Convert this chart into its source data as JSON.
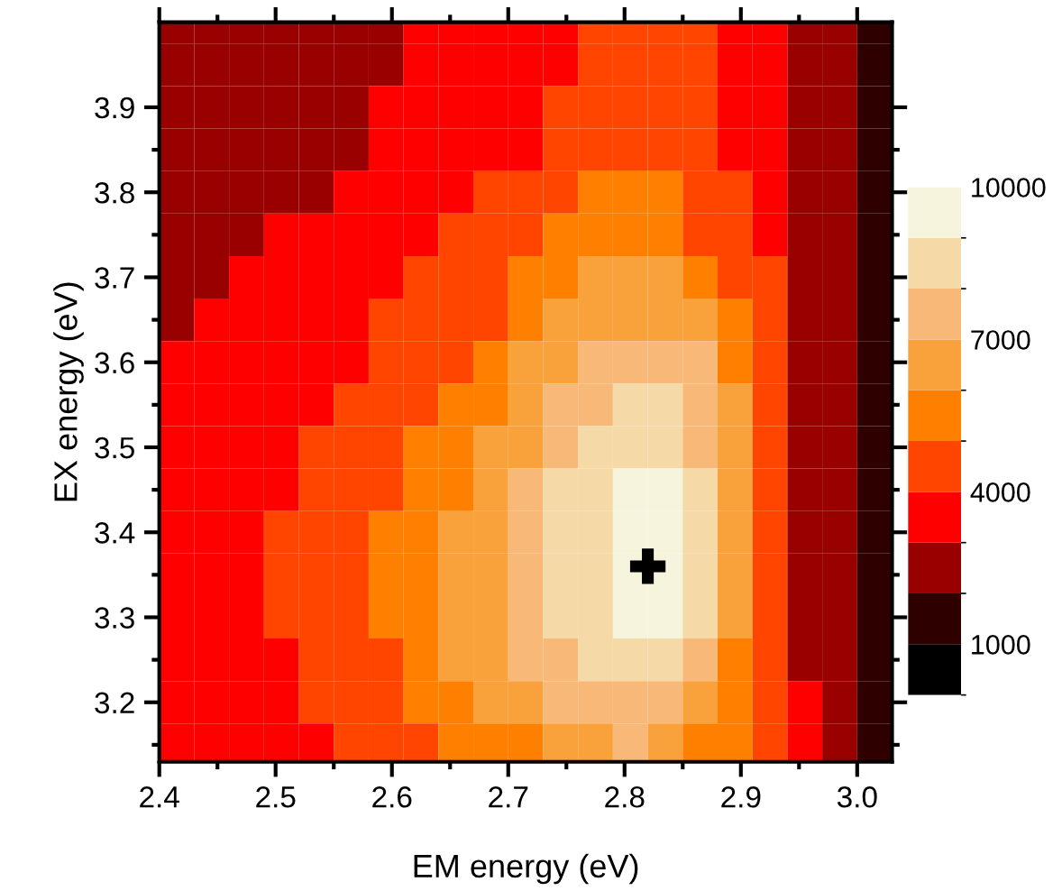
{
  "chart_data": {
    "type": "heatmap",
    "xlabel": "EM energy (eV)",
    "ylabel": "EX energy (eV)",
    "x": [
      2.415,
      2.445,
      2.475,
      2.505,
      2.535,
      2.565,
      2.595,
      2.625,
      2.655,
      2.685,
      2.715,
      2.745,
      2.775,
      2.805,
      2.835,
      2.865,
      2.895,
      2.925,
      2.955,
      2.985,
      3.015
    ],
    "y": [
      4.0,
      3.95,
      3.9,
      3.85,
      3.8,
      3.75,
      3.7,
      3.65,
      3.6,
      3.55,
      3.5,
      3.45,
      3.4,
      3.35,
      3.3,
      3.25,
      3.2,
      3.15
    ],
    "cells": [
      [
        2500,
        2500,
        2500,
        2500,
        2500,
        2500,
        2500,
        3500,
        3500,
        3500,
        3500,
        3500,
        4500,
        4500,
        4500,
        4500,
        3500,
        3500,
        2500,
        2500,
        1500
      ],
      [
        2500,
        2500,
        2500,
        2500,
        2500,
        2500,
        2500,
        3500,
        3500,
        3500,
        3500,
        3500,
        4500,
        4500,
        4500,
        4500,
        3500,
        3500,
        2500,
        2500,
        1500
      ],
      [
        2500,
        2500,
        2500,
        2500,
        2500,
        2500,
        3500,
        3500,
        3500,
        3500,
        3500,
        4500,
        4500,
        4500,
        4500,
        4500,
        3500,
        3500,
        2500,
        2500,
        1500
      ],
      [
        2500,
        2500,
        2500,
        2500,
        2500,
        2500,
        3500,
        3500,
        3500,
        3500,
        3500,
        4500,
        4500,
        4500,
        4500,
        4500,
        3500,
        3500,
        2500,
        2500,
        1500
      ],
      [
        2500,
        2500,
        2500,
        2500,
        2500,
        3500,
        3500,
        3500,
        3500,
        4500,
        4500,
        4500,
        5500,
        5500,
        5500,
        4500,
        4500,
        3500,
        2500,
        2500,
        1500
      ],
      [
        2500,
        2500,
        2500,
        3500,
        3500,
        3500,
        3500,
        3500,
        4500,
        4500,
        4500,
        5500,
        5500,
        5500,
        5500,
        4500,
        4500,
        3500,
        2500,
        2500,
        1500
      ],
      [
        2500,
        2500,
        3500,
        3500,
        3500,
        3500,
        3500,
        4500,
        4500,
        4500,
        5500,
        5500,
        6500,
        6500,
        6500,
        5500,
        4500,
        4500,
        2500,
        2500,
        1500
      ],
      [
        2500,
        3500,
        3500,
        3500,
        3500,
        3500,
        4500,
        4500,
        4500,
        4500,
        5500,
        6500,
        6500,
        6500,
        6500,
        6500,
        5500,
        4500,
        2500,
        2500,
        1500
      ],
      [
        3500,
        3500,
        3500,
        3500,
        3500,
        3500,
        4500,
        4500,
        4500,
        5500,
        6500,
        6500,
        7500,
        7500,
        7500,
        7500,
        5500,
        4500,
        2500,
        2500,
        1500
      ],
      [
        3500,
        3500,
        3500,
        3500,
        3500,
        4500,
        4500,
        4500,
        5500,
        5500,
        6500,
        7500,
        7500,
        8500,
        8500,
        7500,
        6500,
        4500,
        2500,
        2500,
        1500
      ],
      [
        3500,
        3500,
        3500,
        3500,
        4500,
        4500,
        4500,
        5500,
        5500,
        6500,
        6500,
        7500,
        8500,
        8500,
        8500,
        7500,
        6500,
        4500,
        2500,
        2500,
        1500
      ],
      [
        3500,
        3500,
        3500,
        3500,
        4500,
        4500,
        4500,
        5500,
        5500,
        6500,
        7500,
        8500,
        8500,
        9500,
        9500,
        8500,
        6500,
        4500,
        2500,
        2500,
        1500
      ],
      [
        3500,
        3500,
        3500,
        4500,
        4500,
        4500,
        5500,
        5500,
        6500,
        6500,
        7500,
        8500,
        8500,
        9500,
        9500,
        8500,
        6500,
        4500,
        2500,
        2500,
        1500
      ],
      [
        3500,
        3500,
        3500,
        4500,
        4500,
        4500,
        5500,
        5500,
        6500,
        6500,
        7500,
        8500,
        8500,
        9500,
        9500,
        8500,
        6500,
        4500,
        2500,
        2500,
        1500
      ],
      [
        3500,
        3500,
        3500,
        4500,
        4500,
        4500,
        5500,
        5500,
        6500,
        6500,
        7500,
        8500,
        8500,
        9500,
        9500,
        8500,
        6500,
        4500,
        2500,
        2500,
        1500
      ],
      [
        3500,
        3500,
        3500,
        3500,
        4500,
        4500,
        4500,
        5500,
        6500,
        6500,
        7500,
        7500,
        8500,
        8500,
        8500,
        7500,
        5500,
        4500,
        2500,
        2500,
        1500
      ],
      [
        3500,
        3500,
        3500,
        3500,
        4500,
        4500,
        4500,
        5500,
        5500,
        6500,
        6500,
        7500,
        7500,
        7500,
        7500,
        6500,
        5500,
        4500,
        3500,
        2500,
        1500
      ],
      [
        3500,
        3500,
        3500,
        3500,
        3500,
        4500,
        4500,
        4500,
        5500,
        5500,
        5500,
        6500,
        6500,
        7500,
        6500,
        5500,
        5500,
        4500,
        3500,
        2500,
        1500
      ]
    ],
    "colors": [
      "#000000",
      "#2f0000",
      "#990000",
      "#ff0000",
      "#ff4500",
      "#ff8000",
      "#f9a13a",
      "#f8b978",
      "#f5d9a6",
      "#f6f4dc"
    ],
    "clim": [
      0,
      10000
    ],
    "cticks": [
      1000,
      4000,
      7000,
      10000
    ],
    "xlim": [
      2.4,
      3.03
    ],
    "xticks": [
      {
        "value": 2.4,
        "label": "2.4"
      },
      {
        "value": 2.5,
        "label": "2.5"
      },
      {
        "value": 2.6,
        "label": "2.6"
      },
      {
        "value": 2.7,
        "label": "2.7"
      },
      {
        "value": 2.8,
        "label": "2.8"
      },
      {
        "value": 2.9,
        "label": "2.9"
      },
      {
        "value": 3.0,
        "label": "3.0"
      }
    ],
    "ylim": [
      3.13,
      4.0
    ],
    "yticks": [
      3.2,
      3.3,
      3.4,
      3.5,
      3.6,
      3.7,
      3.8,
      3.9
    ],
    "series": [
      {
        "type": "scatter",
        "x": [
          2.82
        ],
        "values": [
          3.36
        ],
        "color": "#000000",
        "marker": "cross"
      }
    ],
    "grid": false
  }
}
